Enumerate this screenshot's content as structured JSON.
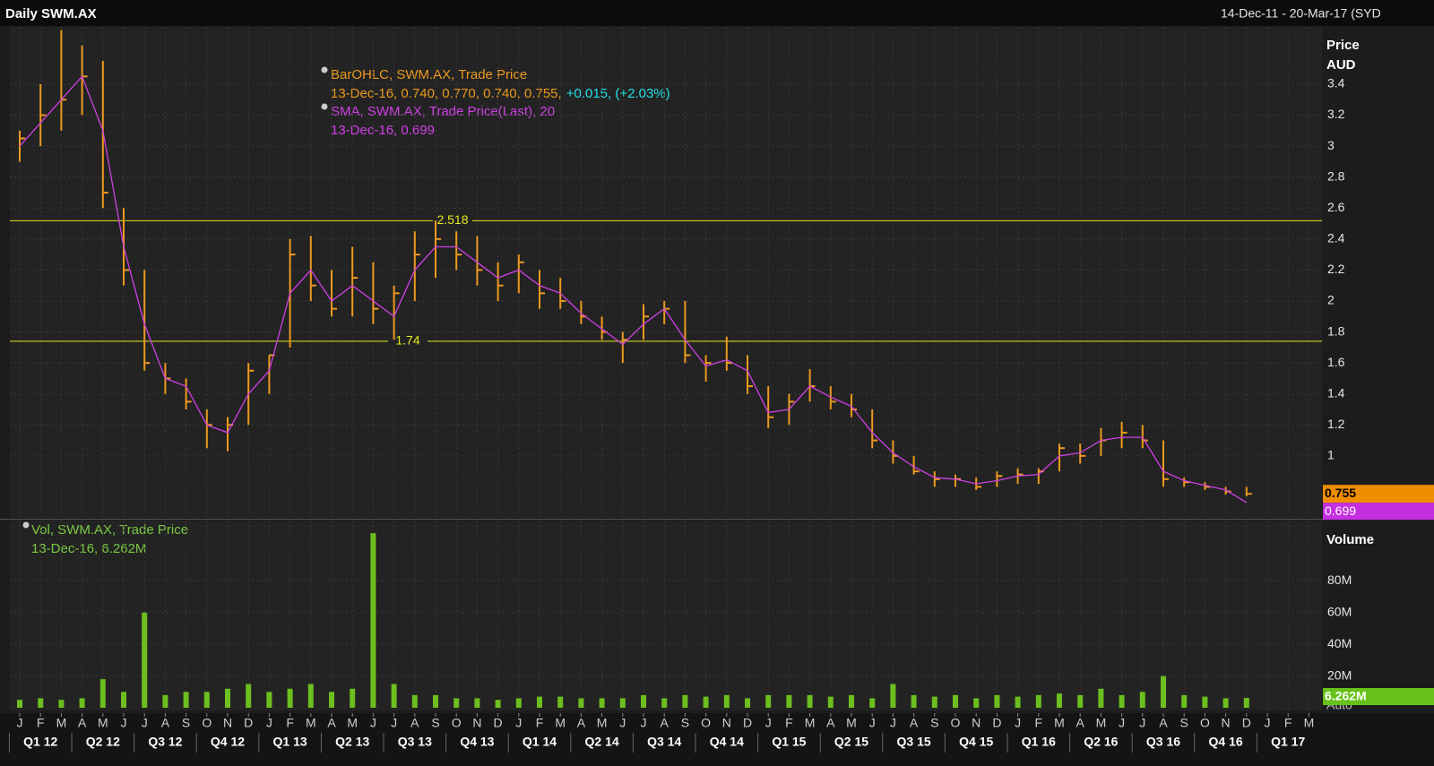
{
  "chart_data": [
    {
      "type": "ohlc",
      "title": "Daily SWM.AX",
      "subtitle": "14-Dec-11 - 20-Mar-17 (SYD",
      "y_label": "Price",
      "y_unit": "AUD",
      "categories": [
        "J",
        "F",
        "M",
        "A",
        "M",
        "J",
        "J",
        "A",
        "S",
        "O",
        "N",
        "D",
        "J",
        "F",
        "M",
        "A",
        "M",
        "J",
        "J",
        "A",
        "S",
        "O",
        "N",
        "D",
        "J",
        "F",
        "M",
        "A",
        "M",
        "J",
        "J",
        "A",
        "S",
        "O",
        "N",
        "D",
        "J",
        "F",
        "M",
        "A",
        "M",
        "J",
        "J",
        "A",
        "S",
        "O",
        "N",
        "D",
        "J",
        "F",
        "M",
        "A",
        "M",
        "J",
        "J",
        "A",
        "S",
        "O",
        "N",
        "D",
        "J",
        "F",
        "M"
      ],
      "quarters": [
        "Q1 12",
        "Q2 12",
        "Q3 12",
        "Q4 12",
        "Q1 13",
        "Q2 13",
        "Q3 13",
        "Q4 13",
        "Q1 14",
        "Q2 14",
        "Q3 14",
        "Q4 14",
        "Q1 15",
        "Q2 15",
        "Q3 15",
        "Q4 15",
        "Q1 16",
        "Q2 16",
        "Q3 16",
        "Q4 16",
        "Q1 17"
      ],
      "ylim": [
        0.6,
        3.77
      ],
      "yticks": [
        1,
        1.2,
        1.4,
        1.6,
        1.8,
        2,
        2.2,
        2.4,
        2.6,
        2.8,
        3,
        3.2,
        3.4
      ],
      "grid": true,
      "hlines": [
        2.518,
        1.74
      ],
      "hline_color": "#e6e61e",
      "legend": [
        {
          "title": "BarOHLC, SWM.AX, Trade Price",
          "detail": "13-Dec-16, 0.740, 0.770, 0.740, 0.755,",
          "change": "+0.015, (+2.03%)"
        },
        {
          "title": "SMA, SWM.AX, Trade Price(Last),  20",
          "detail": "13-Dec-16, 0.699"
        }
      ],
      "series": [
        {
          "name": "BarOHLC",
          "color": "#ec9a1e",
          "high": [
            3.1,
            3.4,
            3.75,
            3.65,
            3.55,
            2.6,
            2.2,
            1.6,
            1.5,
            1.3,
            1.25,
            1.6,
            1.65,
            2.4,
            2.42,
            2.2,
            2.35,
            2.25,
            2.1,
            2.45,
            2.52,
            2.45,
            2.42,
            2.25,
            2.3,
            2.2,
            2.15,
            2.0,
            1.9,
            1.8,
            1.98,
            2.0,
            2.0,
            1.65,
            1.77,
            1.65,
            1.45,
            1.4,
            1.56,
            1.45,
            1.4,
            1.3,
            1.1,
            1.0,
            0.9,
            0.88,
            0.86,
            0.9,
            0.92,
            0.92,
            1.08,
            1.08,
            1.18,
            1.22,
            1.2,
            1.1,
            0.86,
            0.83,
            0.8,
            0.8,
            null,
            null,
            null
          ],
          "low": [
            2.9,
            3.0,
            3.1,
            3.2,
            2.6,
            2.1,
            1.55,
            1.4,
            1.3,
            1.05,
            1.03,
            1.2,
            1.4,
            1.7,
            2.0,
            1.9,
            1.9,
            1.85,
            1.75,
            2.0,
            2.15,
            2.2,
            2.1,
            2.0,
            2.05,
            1.95,
            1.95,
            1.85,
            1.75,
            1.6,
            1.75,
            1.85,
            1.6,
            1.48,
            1.55,
            1.4,
            1.18,
            1.2,
            1.35,
            1.3,
            1.25,
            1.05,
            0.95,
            0.88,
            0.8,
            0.8,
            0.78,
            0.8,
            0.82,
            0.82,
            0.9,
            0.95,
            1.0,
            1.05,
            1.05,
            0.8,
            0.8,
            0.78,
            0.75,
            0.74,
            null,
            null,
            null
          ],
          "close": [
            3.05,
            3.2,
            3.3,
            3.45,
            2.7,
            2.2,
            1.6,
            1.5,
            1.35,
            1.2,
            1.2,
            1.55,
            1.65,
            2.3,
            2.1,
            1.95,
            2.15,
            1.95,
            2.05,
            2.3,
            2.4,
            2.3,
            2.2,
            2.1,
            2.25,
            2.05,
            2.0,
            1.9,
            1.8,
            1.75,
            1.9,
            1.95,
            1.65,
            1.6,
            1.6,
            1.45,
            1.25,
            1.35,
            1.45,
            1.35,
            1.3,
            1.1,
            1.0,
            0.9,
            0.85,
            0.85,
            0.8,
            0.87,
            0.88,
            0.9,
            1.05,
            1.0,
            1.1,
            1.15,
            1.1,
            0.85,
            0.83,
            0.8,
            0.77,
            0.755,
            null,
            null,
            null
          ]
        },
        {
          "name": "SMA",
          "color": "#d040e6",
          "values": [
            3.0,
            3.15,
            3.3,
            3.45,
            3.1,
            2.35,
            1.85,
            1.5,
            1.45,
            1.2,
            1.15,
            1.4,
            1.55,
            2.05,
            2.2,
            2.0,
            2.1,
            2.0,
            1.9,
            2.2,
            2.35,
            2.35,
            2.25,
            2.15,
            2.2,
            2.1,
            2.05,
            1.92,
            1.82,
            1.72,
            1.85,
            1.95,
            1.75,
            1.58,
            1.62,
            1.55,
            1.28,
            1.3,
            1.45,
            1.38,
            1.32,
            1.15,
            1.02,
            0.93,
            0.86,
            0.85,
            0.82,
            0.84,
            0.87,
            0.88,
            1.0,
            1.02,
            1.1,
            1.12,
            1.12,
            0.9,
            0.84,
            0.81,
            0.78,
            0.699,
            null,
            null,
            null
          ]
        }
      ]
    },
    {
      "type": "bar",
      "y_label": "Volume",
      "scale_mode": "Auto",
      "ylim": [
        0,
        118
      ],
      "yticks": [
        {
          "value": 20,
          "label": "20M"
        },
        {
          "value": 40,
          "label": "40M"
        },
        {
          "value": 60,
          "label": "60M"
        },
        {
          "value": 80,
          "label": "80M"
        }
      ],
      "grid": true,
      "legend": [
        {
          "title": "Vol, SWM.AX, Trade Price",
          "detail": "13-Dec-16, 6.262M"
        }
      ],
      "series": [
        {
          "name": "Vol",
          "color": "#6cbf1e",
          "last_label": "6.262M",
          "values": [
            5,
            6,
            5,
            6,
            18,
            10,
            60,
            8,
            10,
            10,
            12,
            15,
            10,
            12,
            15,
            10,
            12,
            110,
            15,
            8,
            8,
            6,
            6,
            5,
            6,
            7,
            7,
            6,
            6,
            6,
            8,
            6,
            8,
            7,
            8,
            6,
            8,
            8,
            8,
            7,
            8,
            6,
            15,
            8,
            7,
            8,
            6,
            8,
            7,
            8,
            9,
            8,
            12,
            8,
            10,
            20,
            8,
            7,
            6,
            6.262,
            null,
            null,
            null
          ]
        }
      ]
    }
  ]
}
